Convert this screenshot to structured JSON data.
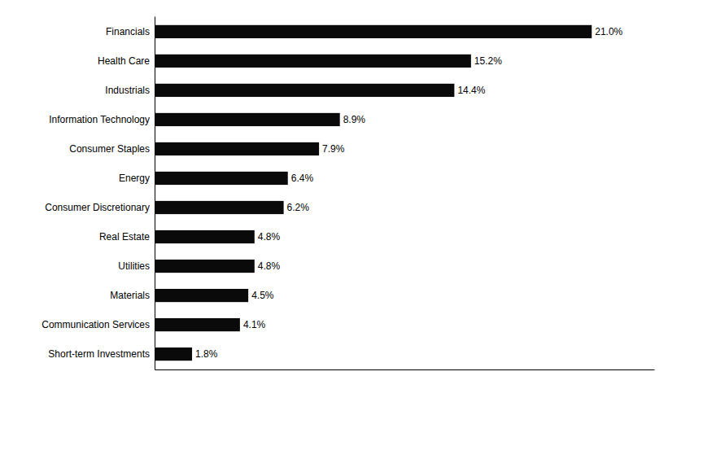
{
  "chart_data": {
    "type": "bar",
    "orientation": "horizontal",
    "categories": [
      "Short-term Investments",
      "Communication Services",
      "Materials",
      "Utilities",
      "Real Estate",
      "Consumer Discretionary",
      "Energy",
      "Consumer Staples",
      "Information Technology",
      "Industrials",
      "Health Care",
      "Financials"
    ],
    "values": [
      1.8,
      4.1,
      4.5,
      4.8,
      4.8,
      6.2,
      6.4,
      7.9,
      8.9,
      14.4,
      15.2,
      21.0
    ],
    "value_labels": [
      "1.8%",
      "4.1%",
      "4.5%",
      "4.8%",
      "4.8%",
      "6.2%",
      "6.4%",
      "7.9%",
      "8.9%",
      "14.4%",
      "15.2%",
      "21.0%"
    ],
    "data_labels": true,
    "color": "#0a0a0a",
    "xlim": [
      0,
      24
    ],
    "grid": false,
    "tick_labels": "y"
  }
}
